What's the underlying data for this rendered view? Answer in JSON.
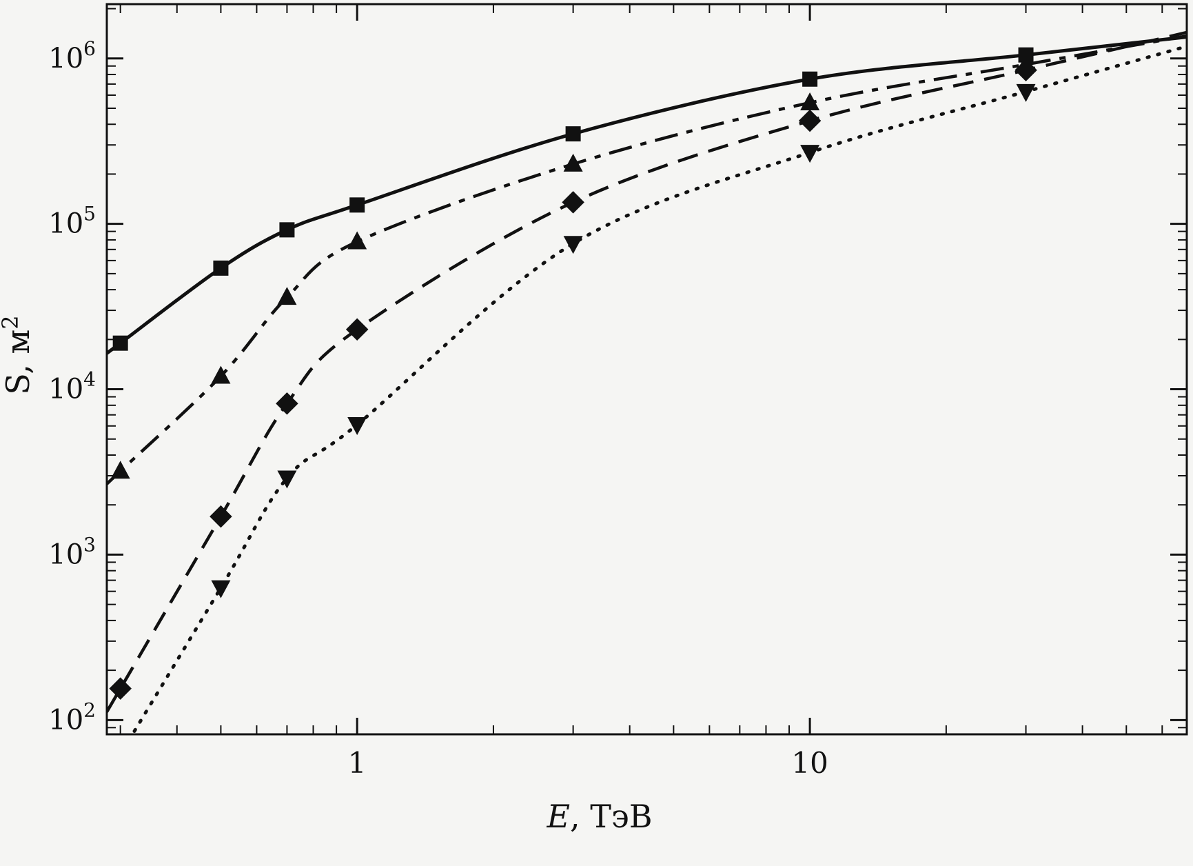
{
  "chart_data": {
    "type": "line",
    "title": "",
    "xlabel": {
      "var": "E",
      "rest": ", ТэВ"
    },
    "ylabel": {
      "base": "S, м",
      "sup": "2"
    },
    "x_scale": "log",
    "y_scale": "log",
    "xlim": [
      0.28,
      68
    ],
    "ylim": [
      82,
      2130000
    ],
    "grid": "off",
    "legend": "none",
    "line_color": "#111111",
    "x_ticks": [
      {
        "value": 1,
        "label": "1"
      },
      {
        "value": 10,
        "label": "10"
      }
    ],
    "y_ticks": [
      {
        "value": 100,
        "base": "10",
        "exp": "2"
      },
      {
        "value": 1000,
        "base": "10",
        "exp": "3"
      },
      {
        "value": 10000,
        "base": "10",
        "exp": "4"
      },
      {
        "value": 100000,
        "base": "10",
        "exp": "5"
      },
      {
        "value": 1000000,
        "base": "10",
        "exp": "6"
      }
    ],
    "series": [
      {
        "id": "squares-solid",
        "label": "solid line with square markers",
        "line": "solid",
        "marker": "square",
        "points": [
          [
            0.3,
            19000
          ],
          [
            0.5,
            54000
          ],
          [
            0.7,
            92000
          ],
          [
            1,
            130000
          ],
          [
            3,
            350000
          ],
          [
            10,
            750000
          ],
          [
            30,
            1050000
          ]
        ]
      },
      {
        "id": "triangles-up-dashdot",
        "label": "dash-dot line with up-triangle markers",
        "line": "dashdot",
        "marker": "triangle-up",
        "points": [
          [
            0.3,
            3200
          ],
          [
            0.5,
            12000
          ],
          [
            0.7,
            36000
          ],
          [
            1,
            78000
          ],
          [
            3,
            230000
          ],
          [
            10,
            540000
          ],
          [
            30,
            920000
          ]
        ]
      },
      {
        "id": "diamonds-dashed",
        "label": "dashed line with diamond markers",
        "line": "dashed",
        "marker": "diamond",
        "points": [
          [
            0.3,
            155
          ],
          [
            0.5,
            1700
          ],
          [
            0.7,
            8200
          ],
          [
            1,
            23000
          ],
          [
            3,
            135000
          ],
          [
            10,
            420000
          ],
          [
            30,
            850000
          ]
        ]
      },
      {
        "id": "triangles-down-dotted",
        "label": "dotted line with down-triangle markers",
        "line": "dotted",
        "marker": "triangle-down",
        "points": [
          [
            0.5,
            630
          ],
          [
            0.7,
            2900
          ],
          [
            1,
            6100
          ],
          [
            3,
            76000
          ],
          [
            10,
            270000
          ],
          [
            30,
            630000
          ]
        ]
      }
    ]
  }
}
